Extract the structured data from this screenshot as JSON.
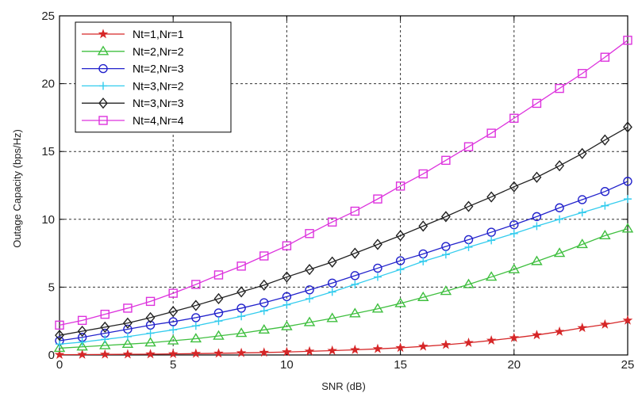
{
  "chart_data": {
    "type": "line",
    "xlabel": "SNR (dB)",
    "ylabel": "Outage Capacity (bps/Hz)",
    "xlim": [
      0,
      25
    ],
    "ylim": [
      0,
      25
    ],
    "xticks": [
      0,
      5,
      10,
      15,
      20,
      25
    ],
    "yticks": [
      0,
      5,
      10,
      15,
      20,
      25
    ],
    "grid": true,
    "legend_position": "top-left",
    "x": [
      0,
      1,
      2,
      3,
      4,
      5,
      6,
      7,
      8,
      9,
      10,
      11,
      12,
      13,
      14,
      15,
      16,
      17,
      18,
      19,
      20,
      21,
      22,
      23,
      24,
      25
    ],
    "series": [
      {
        "name": "Nt=1,Nr=1",
        "color": "#d62728",
        "marker": "star",
        "values": [
          0.02,
          0.03,
          0.04,
          0.05,
          0.06,
          0.08,
          0.1,
          0.12,
          0.15,
          0.18,
          0.22,
          0.27,
          0.32,
          0.38,
          0.45,
          0.53,
          0.63,
          0.75,
          0.9,
          1.07,
          1.26,
          1.47,
          1.72,
          2.0,
          2.25,
          2.55
        ]
      },
      {
        "name": "Nt=2,Nr=2",
        "color": "#3fbf3f",
        "marker": "triangle",
        "values": [
          0.5,
          0.6,
          0.7,
          0.8,
          0.9,
          1.05,
          1.2,
          1.4,
          1.6,
          1.85,
          2.1,
          2.4,
          2.7,
          3.05,
          3.4,
          3.8,
          4.25,
          4.7,
          5.2,
          5.75,
          6.3,
          6.9,
          7.5,
          8.15,
          8.8,
          9.3
        ]
      },
      {
        "name": "Nt=2,Nr=3",
        "color": "#2222cc",
        "marker": "circle",
        "values": [
          1.05,
          1.3,
          1.6,
          1.9,
          2.2,
          2.45,
          2.75,
          3.1,
          3.45,
          3.85,
          4.3,
          4.8,
          5.3,
          5.85,
          6.4,
          6.95,
          7.45,
          8.0,
          8.5,
          9.05,
          9.6,
          10.2,
          10.85,
          11.45,
          12.05,
          12.8
        ]
      },
      {
        "name": "Nt=3,Nr=2",
        "color": "#33ccee",
        "marker": "plus",
        "values": [
          0.8,
          0.95,
          1.15,
          1.35,
          1.6,
          1.85,
          2.15,
          2.5,
          2.85,
          3.25,
          3.7,
          4.15,
          4.65,
          5.2,
          5.75,
          6.3,
          6.9,
          7.4,
          7.95,
          8.45,
          8.95,
          9.5,
          10.0,
          10.5,
          11.0,
          11.5
        ]
      },
      {
        "name": "Nt=3,Nr=3",
        "color": "#222222",
        "marker": "diamond",
        "values": [
          1.45,
          1.75,
          2.05,
          2.35,
          2.75,
          3.2,
          3.65,
          4.15,
          4.65,
          5.15,
          5.75,
          6.3,
          6.85,
          7.5,
          8.15,
          8.8,
          9.5,
          10.2,
          10.95,
          11.65,
          12.4,
          13.1,
          13.95,
          14.85,
          15.85,
          16.8
        ]
      },
      {
        "name": "Nt=4,Nr=4",
        "color": "#dd33dd",
        "marker": "square",
        "values": [
          2.2,
          2.55,
          3.0,
          3.45,
          3.95,
          4.55,
          5.2,
          5.9,
          6.55,
          7.3,
          8.05,
          8.95,
          9.8,
          10.6,
          11.5,
          12.45,
          13.35,
          14.35,
          15.35,
          16.35,
          17.45,
          18.55,
          19.65,
          20.75,
          21.95,
          23.2
        ]
      }
    ]
  }
}
